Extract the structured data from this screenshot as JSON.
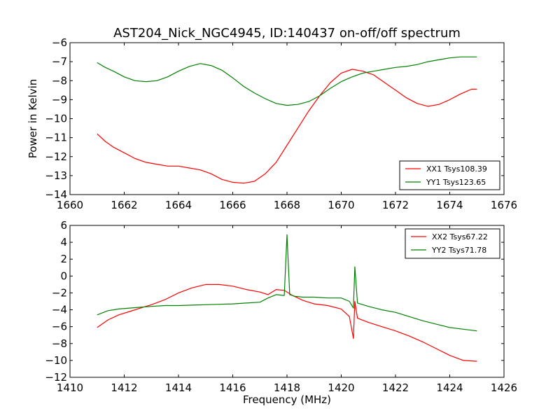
{
  "figure": {
    "title": "AST204_Nick_NGC4945, ID:140437 on-off/off spectrum"
  },
  "chart_data": [
    {
      "type": "line",
      "title": "AST204_Nick_NGC4945, ID:140437 on-off/off spectrum",
      "xlabel": "",
      "ylabel": "Power in Kelvin",
      "xlim": [
        1660,
        1676
      ],
      "ylim": [
        -14,
        -6
      ],
      "xticks": [
        1660,
        1662,
        1664,
        1666,
        1668,
        1670,
        1672,
        1674,
        1676
      ],
      "yticks": [
        -14,
        -13,
        -12,
        -11,
        -10,
        -9,
        -8,
        -7,
        -6
      ],
      "legend_position": "lower-right",
      "series": [
        {
          "name": "XX1 Tsys108.39",
          "color": "#ff0000",
          "x": [
            1661.0,
            1661.3,
            1661.6,
            1662.0,
            1662.4,
            1662.8,
            1663.2,
            1663.6,
            1664.0,
            1664.4,
            1664.8,
            1665.2,
            1665.6,
            1666.0,
            1666.4,
            1666.8,
            1667.2,
            1667.6,
            1668.0,
            1668.4,
            1668.8,
            1669.2,
            1669.6,
            1670.0,
            1670.4,
            1670.8,
            1671.2,
            1671.6,
            1672.0,
            1672.4,
            1672.8,
            1673.2,
            1673.6,
            1674.0,
            1674.4,
            1674.8,
            1675.0
          ],
          "values": [
            -10.8,
            -11.2,
            -11.5,
            -11.8,
            -12.1,
            -12.3,
            -12.4,
            -12.5,
            -12.5,
            -12.6,
            -12.7,
            -12.9,
            -13.2,
            -13.35,
            -13.4,
            -13.3,
            -12.9,
            -12.3,
            -11.4,
            -10.5,
            -9.6,
            -8.8,
            -8.1,
            -7.6,
            -7.4,
            -7.5,
            -7.7,
            -8.1,
            -8.5,
            -8.9,
            -9.2,
            -9.35,
            -9.25,
            -9.0,
            -8.7,
            -8.45,
            -8.45
          ]
        },
        {
          "name": "YY1 Tsys123.65",
          "color": "#008000",
          "x": [
            1661.0,
            1661.3,
            1661.6,
            1662.0,
            1662.4,
            1662.8,
            1663.2,
            1663.6,
            1664.0,
            1664.4,
            1664.8,
            1665.2,
            1665.6,
            1666.0,
            1666.4,
            1666.8,
            1667.2,
            1667.6,
            1668.0,
            1668.4,
            1668.8,
            1669.2,
            1669.6,
            1670.0,
            1670.4,
            1670.8,
            1671.2,
            1671.6,
            1672.0,
            1672.4,
            1672.8,
            1673.2,
            1673.6,
            1674.0,
            1674.4,
            1674.8,
            1675.0
          ],
          "values": [
            -7.05,
            -7.3,
            -7.5,
            -7.8,
            -8.0,
            -8.05,
            -8.0,
            -7.8,
            -7.5,
            -7.25,
            -7.1,
            -7.2,
            -7.45,
            -7.85,
            -8.3,
            -8.65,
            -8.95,
            -9.2,
            -9.3,
            -9.25,
            -9.1,
            -8.8,
            -8.4,
            -8.05,
            -7.8,
            -7.6,
            -7.5,
            -7.4,
            -7.3,
            -7.25,
            -7.15,
            -7.0,
            -6.9,
            -6.8,
            -6.75,
            -6.75,
            -6.75
          ]
        }
      ]
    },
    {
      "type": "line",
      "title": "",
      "xlabel": "Frequency (MHz)",
      "ylabel": "",
      "xlim": [
        1410,
        1426
      ],
      "ylim": [
        -12,
        6
      ],
      "xticks": [
        1410,
        1412,
        1414,
        1416,
        1418,
        1420,
        1422,
        1424,
        1426
      ],
      "yticks": [
        -12,
        -10,
        -8,
        -6,
        -4,
        -2,
        0,
        2,
        4,
        6
      ],
      "legend_position": "upper-right",
      "series": [
        {
          "name": "XX2 Tsys67.22",
          "color": "#ff0000",
          "x": [
            1411.0,
            1411.4,
            1411.8,
            1412.2,
            1412.6,
            1413.0,
            1413.5,
            1414.0,
            1414.5,
            1415.0,
            1415.5,
            1416.0,
            1416.5,
            1417.0,
            1417.3,
            1417.6,
            1417.9,
            1418.2,
            1418.6,
            1419.0,
            1419.5,
            1420.0,
            1420.3,
            1420.45,
            1420.5,
            1420.6,
            1421.0,
            1421.5,
            1422.0,
            1422.5,
            1423.0,
            1423.5,
            1424.0,
            1424.5,
            1425.0
          ],
          "values": [
            -6.1,
            -5.2,
            -4.6,
            -4.2,
            -3.8,
            -3.4,
            -2.8,
            -2.0,
            -1.4,
            -1.0,
            -1.0,
            -1.2,
            -1.6,
            -1.9,
            -2.2,
            -1.6,
            -1.7,
            -2.3,
            -2.9,
            -3.3,
            -3.5,
            -3.9,
            -4.8,
            -7.4,
            -3.0,
            -5.0,
            -5.5,
            -6.0,
            -6.5,
            -7.1,
            -7.8,
            -8.6,
            -9.4,
            -10.0,
            -10.1
          ]
        },
        {
          "name": "YY2 Tsys71.78",
          "color": "#008000",
          "x": [
            1411.0,
            1411.4,
            1411.8,
            1412.2,
            1412.6,
            1413.0,
            1413.5,
            1414.0,
            1414.5,
            1415.0,
            1415.5,
            1416.0,
            1416.5,
            1417.0,
            1417.3,
            1417.6,
            1417.9,
            1418.0,
            1418.1,
            1418.3,
            1418.6,
            1419.0,
            1419.5,
            1420.0,
            1420.3,
            1420.45,
            1420.5,
            1420.6,
            1421.0,
            1421.5,
            1422.0,
            1422.5,
            1423.0,
            1423.5,
            1424.0,
            1424.5,
            1425.0
          ],
          "values": [
            -4.6,
            -4.1,
            -3.9,
            -3.8,
            -3.7,
            -3.6,
            -3.5,
            -3.5,
            -3.45,
            -3.4,
            -3.35,
            -3.3,
            -3.2,
            -3.1,
            -2.6,
            -2.2,
            -2.3,
            4.9,
            -2.2,
            -2.4,
            -2.5,
            -2.5,
            -2.6,
            -2.6,
            -3.0,
            -3.8,
            1.1,
            -3.2,
            -3.6,
            -4.0,
            -4.3,
            -4.8,
            -5.3,
            -5.7,
            -6.1,
            -6.3,
            -6.5
          ]
        }
      ]
    }
  ]
}
